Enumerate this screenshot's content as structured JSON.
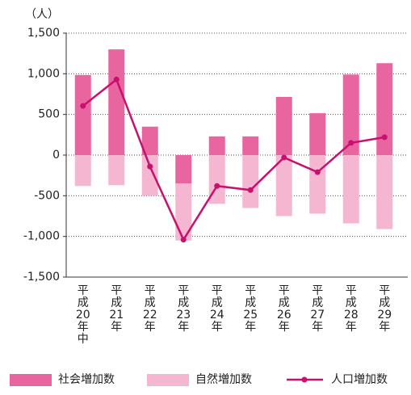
{
  "chart_data": {
    "type": "bar",
    "unit_label": "（人）",
    "categories": [
      "平成20年中",
      "平成21年",
      "平成22年",
      "平成23年",
      "平成24年",
      "平成25年",
      "平成26年",
      "平成27年",
      "平成28年",
      "平成29年"
    ],
    "series": [
      {
        "name": "社会増加数",
        "type": "bar",
        "color": "#e9659f",
        "values": [
          985,
          1300,
          350,
          -350,
          230,
          230,
          715,
          515,
          990,
          1130
        ]
      },
      {
        "name": "自然増加数",
        "type": "bar",
        "color": "#f5b6d1",
        "values": [
          -380,
          -370,
          -500,
          -700,
          -600,
          -650,
          -750,
          -720,
          -840,
          -910
        ]
      },
      {
        "name": "人口増加数",
        "type": "line",
        "color": "#c8106e",
        "values": [
          605,
          930,
          -140,
          -1040,
          -380,
          -430,
          -30,
          -210,
          150,
          220
        ]
      }
    ],
    "ylim": [
      -1500,
      1500
    ],
    "yticks": [
      {
        "value": 1500,
        "label": "1,500"
      },
      {
        "value": 1000,
        "label": "1,000"
      },
      500,
      0,
      -500,
      {
        "value": -1000,
        "label": "-1,000"
      },
      {
        "value": -1500,
        "label": "-1,500"
      }
    ],
    "grid": true,
    "stacked": true,
    "legend": "bottom"
  }
}
